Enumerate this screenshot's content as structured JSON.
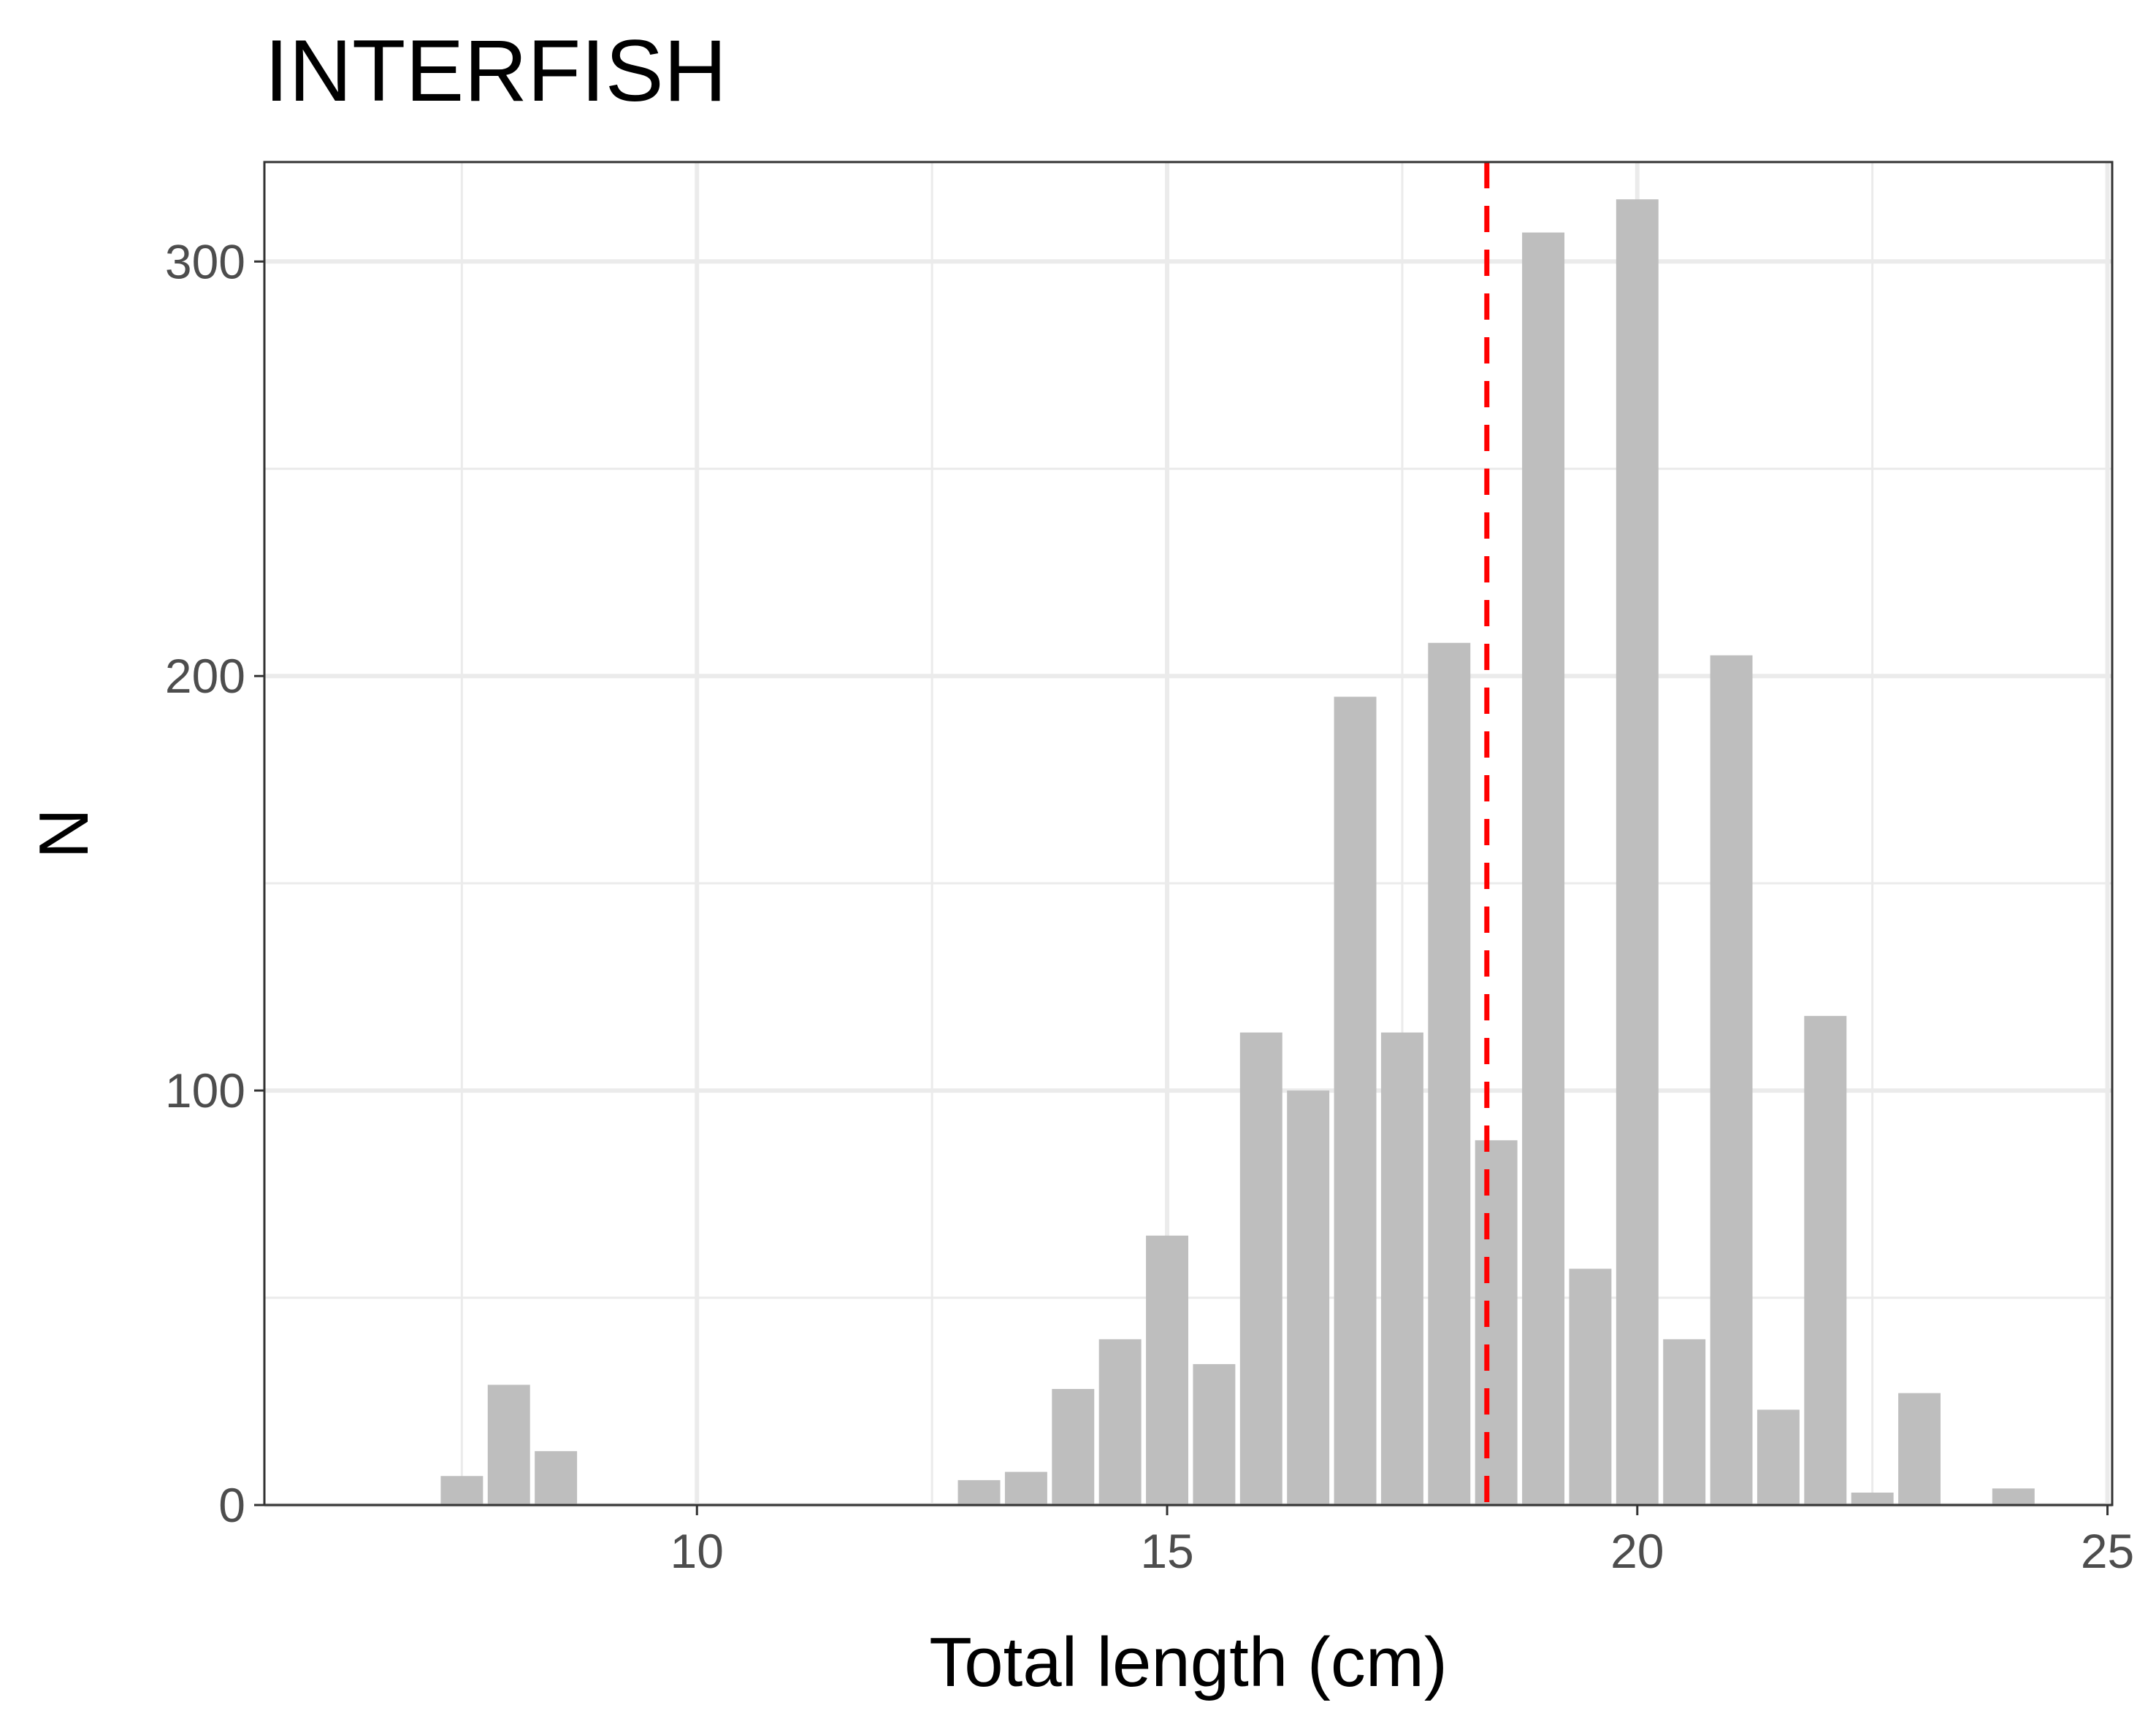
{
  "chart_data": {
    "type": "bar",
    "title": "INTERFISH",
    "xlabel": "Total length (cm)",
    "ylabel": "N",
    "xlim": [
      5.4,
      25.05
    ],
    "ylim": [
      0,
      324
    ],
    "x_ticks": [
      10,
      15,
      20,
      25
    ],
    "y_ticks": [
      0,
      100,
      200,
      300
    ],
    "x_minor_ticks": [
      7.5,
      12.5,
      17.5,
      22.5
    ],
    "y_minor_ticks": [
      50,
      150,
      250
    ],
    "grid": true,
    "bar_width": 0.45,
    "x": [
      7.5,
      8.0,
      8.5,
      13.0,
      13.5,
      14.0,
      14.5,
      15.0,
      15.5,
      16.0,
      16.5,
      17.0,
      17.5,
      18.0,
      18.5,
      19.0,
      19.5,
      20.0,
      20.5,
      21.0,
      21.5,
      22.0,
      22.5,
      23.0,
      24.0
    ],
    "values": [
      7,
      29,
      13,
      6,
      8,
      28,
      40,
      65,
      34,
      114,
      100,
      195,
      114,
      208,
      88,
      307,
      57,
      315,
      40,
      205,
      23,
      118,
      3,
      27,
      4
    ],
    "reference_line": {
      "x": 18.4,
      "style": "dashed",
      "color": "#ff0000"
    },
    "colors": {
      "bar": "#bebebe",
      "grid": "#ebebeb",
      "panel_border": "#333333"
    }
  }
}
